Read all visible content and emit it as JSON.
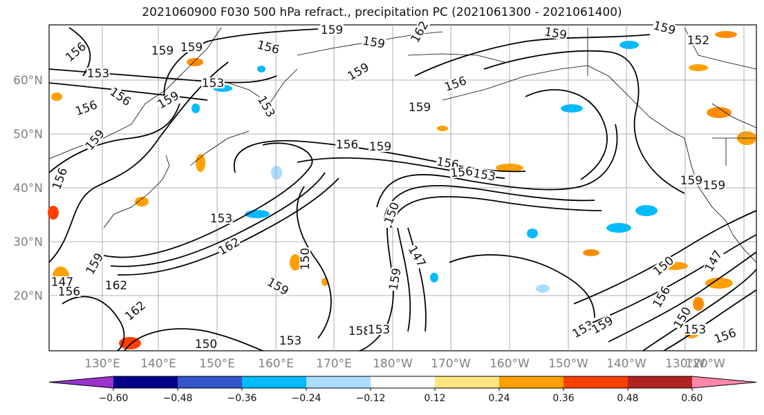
{
  "title": "2021060900 F030 500 hPa refract., precipitation PC (2021061300 - 2021061400)",
  "lat_labels": [
    "20°N",
    "30°N",
    "40°N",
    "50°N",
    "60°N"
  ],
  "lon_labels": [
    "130°E",
    "140°E",
    "150°E",
    "160°E",
    "170°E",
    "180°W",
    "170°W",
    "160°W",
    "150°W",
    "140°W",
    "130°W",
    "120°W"
  ],
  "colorbar": {
    "colors": [
      "#9933cc",
      "#000088",
      "#3355cc",
      "#00bbff",
      "#aaddff",
      "#ffffff",
      "#ffe680",
      "#ffa000",
      "#ff4000",
      "#b22222",
      "#ff88aa"
    ],
    "tick_labels": [
      "−0.60",
      "−0.48",
      "−0.36",
      "−0.24",
      "−0.12",
      "0.12",
      "0.24",
      "0.36",
      "0.48",
      "0.60"
    ]
  },
  "contour_labels": [
    "156",
    "159",
    "159",
    "156",
    "159",
    "162",
    "153",
    "153",
    "156",
    "156",
    "159",
    "159",
    "159",
    "159",
    "153",
    "156",
    "156",
    "159",
    "156",
    "156",
    "153",
    "159",
    "156",
    "153",
    "162",
    "150",
    "162",
    "159",
    "150",
    "147",
    "147",
    "159",
    "156",
    "162",
    "159",
    "150",
    "153",
    "158",
    "153",
    "153",
    "159",
    "150",
    "156",
    "153",
    "156",
    "150",
    "147",
    "159",
    "159",
    "159",
    "159",
    "152"
  ],
  "colors": {
    "contour": "#000000",
    "grid": "#999999",
    "coast": "#000000"
  }
}
